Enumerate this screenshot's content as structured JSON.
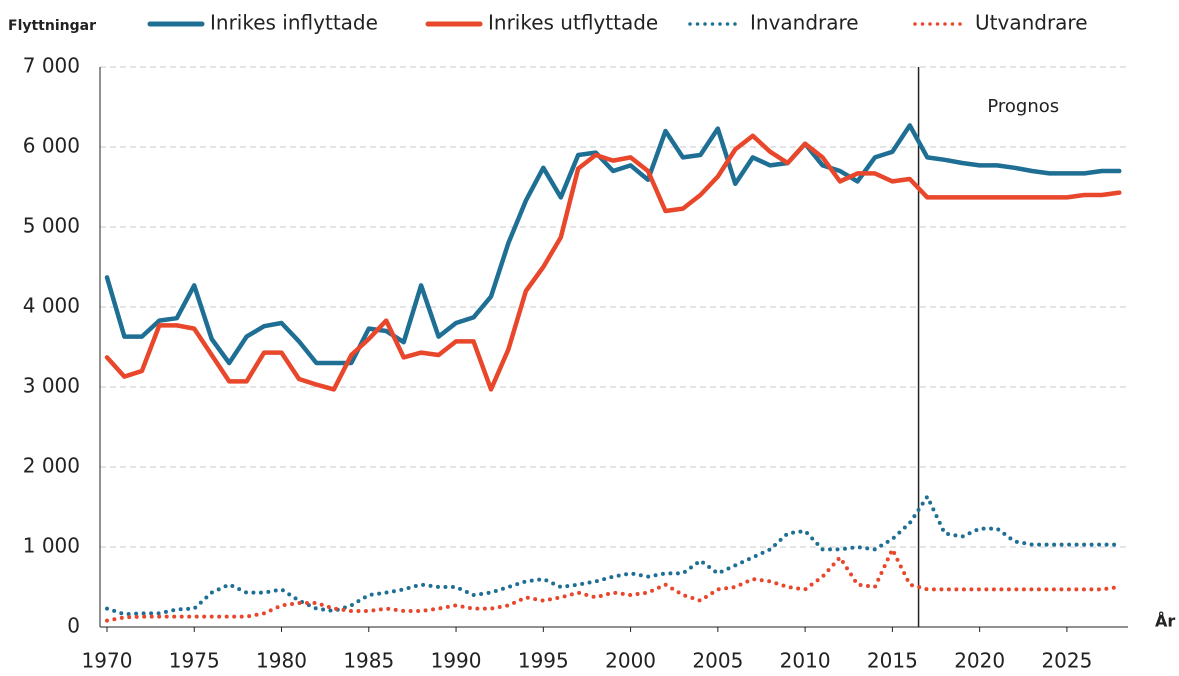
{
  "chart_data": {
    "type": "line",
    "y_axis_label": "Flyttningar",
    "x_axis_label": "År",
    "x": [
      1970,
      1971,
      1972,
      1973,
      1974,
      1975,
      1976,
      1977,
      1978,
      1979,
      1980,
      1981,
      1982,
      1983,
      1984,
      1985,
      1986,
      1987,
      1988,
      1989,
      1990,
      1991,
      1992,
      1993,
      1994,
      1995,
      1996,
      1997,
      1998,
      1999,
      2000,
      2001,
      2002,
      2003,
      2004,
      2005,
      2006,
      2007,
      2008,
      2009,
      2010,
      2011,
      2012,
      2013,
      2014,
      2015,
      2016,
      2017,
      2018,
      2019,
      2020,
      2021,
      2022,
      2023,
      2024,
      2025,
      2026,
      2027,
      2028
    ],
    "series": [
      {
        "name": "Inrikes inflyttade",
        "color": "#1f6f95",
        "style": "solid",
        "values": [
          4370,
          3630,
          3630,
          3830,
          3860,
          4270,
          3600,
          3300,
          3630,
          3760,
          3800,
          3570,
          3300,
          3300,
          3300,
          3730,
          3700,
          3560,
          4270,
          3630,
          3800,
          3870,
          4130,
          4800,
          5330,
          5740,
          5370,
          5900,
          5930,
          5700,
          5770,
          5590,
          6200,
          5870,
          5900,
          6230,
          5540,
          5870,
          5770,
          5800,
          6040,
          5770,
          5700,
          5570,
          5870,
          5940,
          6270,
          5870,
          5840,
          5800,
          5770,
          5770,
          5740,
          5700,
          5670,
          5670,
          5670,
          5700,
          5700
        ]
      },
      {
        "name": "Inrikes utflyttade",
        "color": "#e8472b",
        "style": "solid",
        "values": [
          3370,
          3130,
          3200,
          3770,
          3770,
          3730,
          3400,
          3070,
          3070,
          3430,
          3430,
          3100,
          3030,
          2970,
          3400,
          3600,
          3830,
          3370,
          3430,
          3400,
          3570,
          3570,
          2970,
          3470,
          4200,
          4500,
          4870,
          5730,
          5900,
          5830,
          5870,
          5700,
          5200,
          5230,
          5400,
          5630,
          5970,
          6140,
          5940,
          5800,
          6040,
          5870,
          5570,
          5670,
          5670,
          5570,
          5600,
          5370,
          5370,
          5370,
          5370,
          5370,
          5370,
          5370,
          5370,
          5370,
          5400,
          5400,
          5430
        ]
      },
      {
        "name": "Invandrare",
        "color": "#1f6f95",
        "style": "dotted",
        "values": [
          230,
          160,
          170,
          170,
          220,
          230,
          430,
          530,
          430,
          430,
          470,
          330,
          230,
          200,
          270,
          400,
          430,
          470,
          530,
          500,
          500,
          400,
          430,
          500,
          570,
          600,
          500,
          530,
          570,
          630,
          670,
          630,
          670,
          670,
          830,
          670,
          770,
          870,
          970,
          1170,
          1200,
          970,
          970,
          1000,
          970,
          1100,
          1300,
          1630,
          1170,
          1130,
          1230,
          1230,
          1070,
          1030,
          1030,
          1030,
          1030,
          1030,
          1030
        ]
      },
      {
        "name": "Utvandrare",
        "color": "#e8472b",
        "style": "dotted",
        "values": [
          80,
          120,
          130,
          130,
          130,
          130,
          130,
          130,
          130,
          170,
          270,
          300,
          300,
          230,
          200,
          200,
          230,
          200,
          200,
          230,
          270,
          230,
          230,
          270,
          370,
          330,
          370,
          430,
          370,
          430,
          400,
          430,
          530,
          400,
          330,
          470,
          500,
          600,
          570,
          500,
          470,
          630,
          870,
          530,
          500,
          970,
          530,
          470,
          470,
          470,
          470,
          470,
          470,
          470,
          470,
          470,
          470,
          470,
          500
        ]
      }
    ],
    "xlim": [
      1969.6,
      2028.5
    ],
    "xticks": [
      1970,
      1975,
      1980,
      1985,
      1990,
      1995,
      2000,
      2005,
      2010,
      2015,
      2020,
      2025
    ],
    "ylim": [
      0,
      7000
    ],
    "yticks": [
      0,
      {
        "value": 1000,
        "label": "1 000"
      },
      {
        "value": 2000,
        "label": "2 000"
      },
      {
        "value": 3000,
        "label": "3 000"
      },
      {
        "value": 4000,
        "label": "4 000"
      },
      {
        "value": 5000,
        "label": "5 000"
      },
      {
        "value": 6000,
        "label": "6 000"
      },
      {
        "value": 7000,
        "label": "7 000"
      }
    ],
    "grid": true,
    "legend": "top",
    "annotations": [
      {
        "text": "Prognos",
        "x": 2016.5
      }
    ]
  }
}
